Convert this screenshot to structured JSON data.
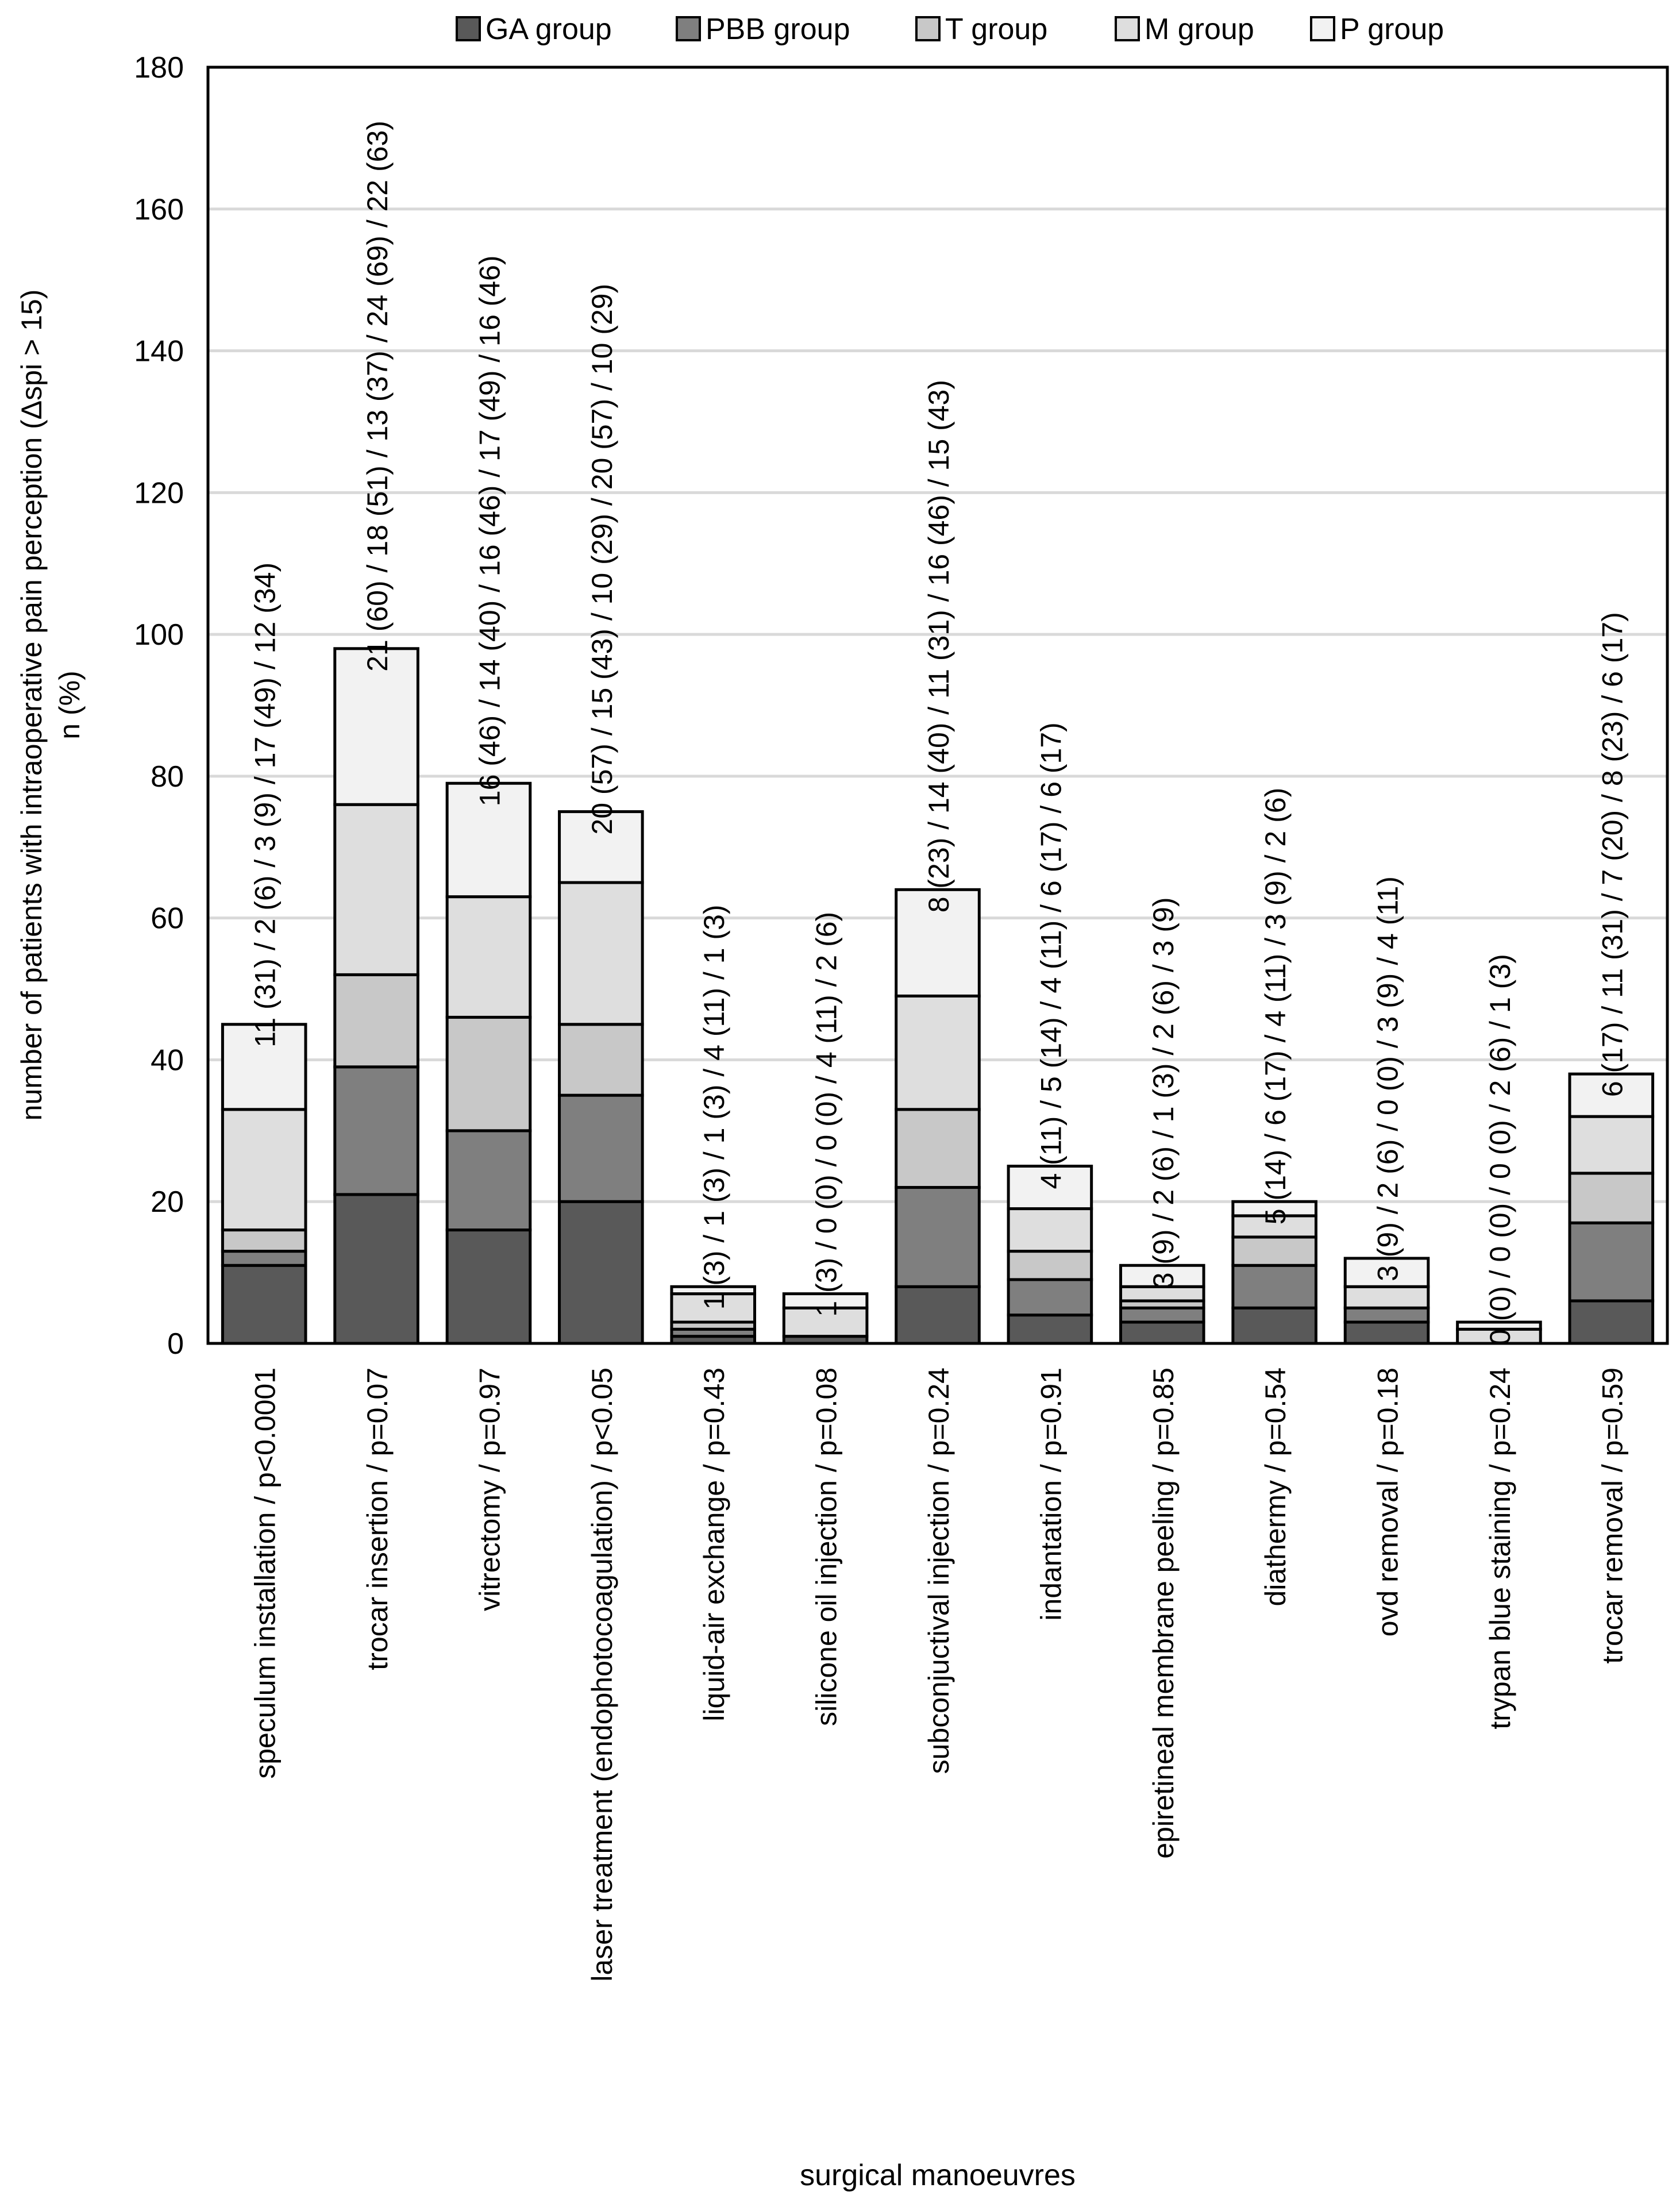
{
  "chart_data": {
    "type": "bar",
    "stacked": true,
    "title": "",
    "xlabel": "surgical manoeuvres",
    "ylabel": "number of patients with intraoperative pain perception (Δspi > 15)",
    "ylabel_sub": "n (%)",
    "ylim": [
      0,
      180
    ],
    "yticks": [
      0,
      20,
      40,
      60,
      80,
      100,
      120,
      140,
      160,
      180
    ],
    "legend_position": "top",
    "categories": [
      "speculum installation / p<0.0001",
      "trocar insertion / p=0.07",
      "vitrectomy / p=0.97",
      "laser treatment (endophotocoagulation) / p<0.05",
      "liquid-air exchange / p=0.43",
      "silicone oil injection / p=0.08",
      "subconjuctival injection / p=0.24",
      "indantation / p=0.91",
      "epiretineal membrane peeling / p=0.85",
      "diathermy / p=0.54",
      "ovd removal / p=0.18",
      "trypan blue staining / p=0.24",
      "trocar removal / p=0.59"
    ],
    "series": [
      {
        "name": "GA group",
        "color": "#595959",
        "values": [
          11,
          21,
          16,
          20,
          1,
          1,
          8,
          4,
          3,
          5,
          3,
          0,
          6
        ]
      },
      {
        "name": "PBB group",
        "color": "#7f7f7f",
        "values": [
          2,
          18,
          14,
          15,
          1,
          0,
          14,
          5,
          2,
          6,
          2,
          0,
          11
        ]
      },
      {
        "name": "T group",
        "color": "#c8c8c8",
        "values": [
          3,
          13,
          16,
          10,
          1,
          0,
          11,
          4,
          1,
          4,
          0,
          0,
          7
        ]
      },
      {
        "name": "M group",
        "color": "#dedede",
        "values": [
          17,
          24,
          17,
          20,
          4,
          4,
          16,
          6,
          2,
          3,
          3,
          2,
          8
        ]
      },
      {
        "name": "P group",
        "color": "#f2f2f2",
        "values": [
          12,
          22,
          16,
          10,
          1,
          2,
          15,
          6,
          3,
          2,
          4,
          1,
          6
        ]
      }
    ],
    "annotations": [
      "11 (31) / 2 (6) / 3 (9) / 17 (49) / 12 (34)",
      "21 (60) / 18 (51) / 13 (37) / 24 (69) / 22 (63)",
      "16 (46) / 14 (40) / 16 (46) / 17 (49) / 16 (46)",
      "20 (57) / 15 (43) / 10 (29) / 20 (57) / 10 (29)",
      "1 (3) / 1 (3) / 1 (3) / 4 (11) / 1 (3)",
      "1 (3) / 0 (0) / 0 (0) / 4 (11) / 2 (6)",
      "8 (23) / 14 (40) / 11 (31) / 16 (46) / 15 (43)",
      "4 (11) / 5 (14) / 4 (11) / 6 (17) / 6 (17)",
      "3 (9) / 2 (6) / 1 (3) / 2 (6) / 3 (9)",
      "5 (14) / 6 (17) / 4 (11) / 3 (9) / 2 (6)",
      "3 (9) / 2 (6) / 0 (0) / 3 (9) / 4 (11)",
      "0 (0) / 0 (0) / 0 (0) / 2 (6) / 1 (3)",
      "6 (17) / 11 (31) / 7 (20) / 8 (23) / 6 (17)"
    ]
  }
}
